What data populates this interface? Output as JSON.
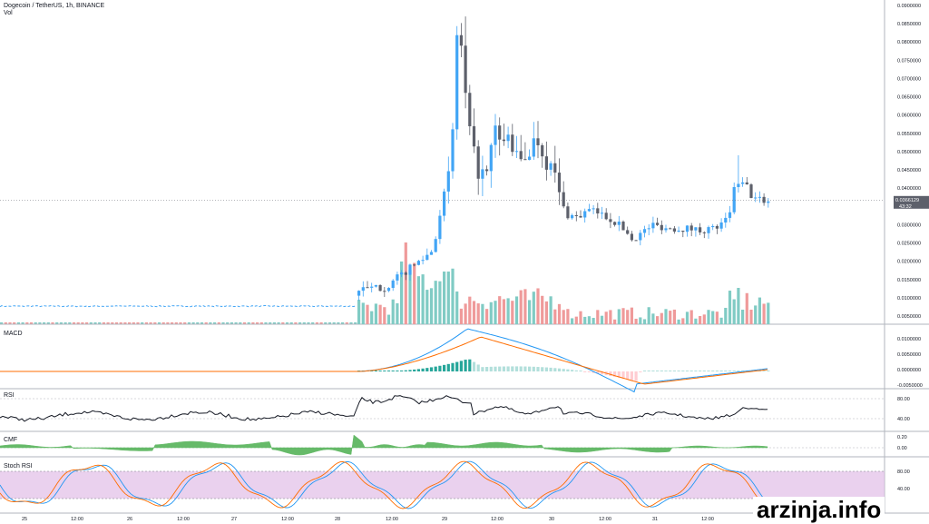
{
  "header": {
    "symbol_title": "Dogecoin / TetherUS, 1h, BINANCE",
    "volume_label": "Vol"
  },
  "panes": {
    "macd_label": "MACD",
    "rsi_label": "RSI",
    "cmf_label": "CMF",
    "stoch_label": "Stoch RSI"
  },
  "price_axis": {
    "labels": [
      "0.0900000",
      "0.0850000",
      "0.0800000",
      "0.0750000",
      "0.0700000",
      "0.0650000",
      "0.0600000",
      "0.0550000",
      "0.0500000",
      "0.0450000",
      "0.0400000",
      "0.0350000",
      "0.0300000",
      "0.0250000",
      "0.0200000",
      "0.0150000",
      "0.0100000",
      "0.0050000"
    ],
    "last_price_label": "0.0366129",
    "countdown_label": "43:32"
  },
  "macd_axis": {
    "labels": [
      "0.0100000",
      "0.0050000",
      "0.0000000",
      "-0.0050000"
    ]
  },
  "rsi_axis": {
    "labels": [
      "80.00",
      "40.00"
    ]
  },
  "cmf_axis": {
    "labels": [
      "0.20",
      "0.00"
    ]
  },
  "stoch_axis": {
    "labels": [
      "80.00",
      "40.00"
    ]
  },
  "time_axis": {
    "labels": [
      "25",
      "12:00",
      "26",
      "12:00",
      "27",
      "12:00",
      "28",
      "12:00",
      "29",
      "12:00",
      "30",
      "12:00",
      "31",
      "12:00"
    ]
  },
  "watermark": "arzinja.info",
  "colors": {
    "up": "#42a5f5",
    "down": "#5d606b",
    "vol_up": "#80cbc4",
    "vol_down": "#ef9a9a",
    "macd_line": "#2196f3",
    "signal_line": "#ff6d00",
    "hist_pos": "#26a69a",
    "hist_pos_light": "#b2dfdb",
    "hist_neg": "#ef5350",
    "hist_neg_light": "#ffcdd2",
    "rsi_line": "#131722",
    "cmf_fill": "#4caf50",
    "stoch_k": "#2196f3",
    "stoch_d": "#ff6d00",
    "stoch_band": "#e1bee7"
  },
  "chart_data": {
    "type": "candlestick",
    "title": "Dogecoin / TetherUS, 1h, BINANCE",
    "y_axis_range": [
      0.0035,
      0.0905
    ],
    "series_description": "approximate hourly price path read from candles, sampled key points",
    "price_keypoints": [
      {
        "t": "25",
        "close": 0.0077
      },
      {
        "t": "26",
        "close": 0.0077
      },
      {
        "t": "27",
        "close": 0.0076
      },
      {
        "t": "28",
        "close": 0.0077
      },
      {
        "t": "28 06:00",
        "close": 0.012
      },
      {
        "t": "28 12:00",
        "close": 0.015
      },
      {
        "t": "28 18:00",
        "close": 0.023
      },
      {
        "t": "29 00:00",
        "close": 0.04
      },
      {
        "t": "29 06:00",
        "close": 0.083
      },
      {
        "t": "29 09:00",
        "close": 0.062
      },
      {
        "t": "29 12:00",
        "close": 0.046
      },
      {
        "t": "29 18:00",
        "close": 0.054
      },
      {
        "t": "30 00:00",
        "close": 0.051
      },
      {
        "t": "30 06:00",
        "close": 0.042
      },
      {
        "t": "30 12:00",
        "close": 0.032
      },
      {
        "t": "30 18:00",
        "close": 0.031
      },
      {
        "t": "31 00:00",
        "close": 0.026
      },
      {
        "t": "31 06:00",
        "close": 0.029
      },
      {
        "t": "31 12:00",
        "close": 0.028
      },
      {
        "t": "31 18:00",
        "close": 0.029
      },
      {
        "t": "1 00:00",
        "close": 0.042
      },
      {
        "t": "1 03:00",
        "close": 0.0366
      }
    ],
    "last_price": 0.0366129,
    "indicators": [
      "Volume",
      "MACD",
      "RSI",
      "CMF",
      "Stoch RSI"
    ]
  }
}
